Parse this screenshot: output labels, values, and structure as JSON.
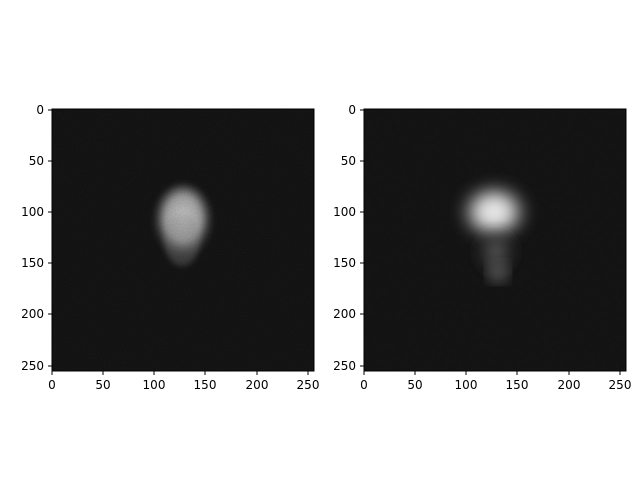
{
  "panels": [
    {
      "name": "left",
      "image": "grayscale noisy scan with bright blob",
      "xticks": [
        "0",
        "50",
        "100",
        "150",
        "200",
        "250"
      ],
      "yticks": [
        "0",
        "50",
        "100",
        "150",
        "200",
        "250"
      ]
    },
    {
      "name": "right",
      "image": "grayscale smoothed reconstruction with bright blob",
      "xticks": [
        "0",
        "50",
        "100",
        "150",
        "200",
        "250"
      ],
      "yticks": [
        "0",
        "50",
        "100",
        "150",
        "200",
        "250"
      ]
    }
  ],
  "colors": {
    "frame": "#000000",
    "background": "#ffffff"
  }
}
